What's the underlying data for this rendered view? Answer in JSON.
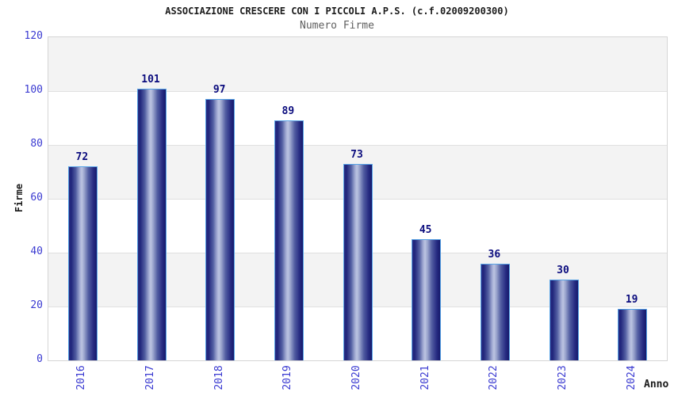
{
  "page": {
    "title": "ASSOCIAZIONE CRESCERE CON I PICCOLI A.P.S. (c.f.02009200300)",
    "subtitle": "Numero Firme"
  },
  "chart_data": {
    "type": "bar",
    "title": "ASSOCIAZIONE CRESCERE CON I PICCOLI A.P.S. (c.f.02009200300)",
    "subtitle": "Numero Firme",
    "categories": [
      "2016",
      "2017",
      "2018",
      "2019",
      "2020",
      "2021",
      "2022",
      "2023",
      "2024"
    ],
    "values": [
      72,
      101,
      97,
      89,
      73,
      45,
      36,
      30,
      19
    ],
    "xlabel": "Anno",
    "ylabel": "Firme",
    "ylim": [
      0,
      120
    ],
    "yticks": [
      0,
      20,
      40,
      60,
      80,
      100,
      120
    ],
    "grid": true,
    "legend": "none",
    "style": {
      "bar_border_color": "#57a3e6",
      "bar_dark_color": "#20257b",
      "bar_light_color": "#bcc4e2",
      "value_label_color": "#0b0c7e",
      "tick_label_color": "#3a3ad1",
      "band_color": "#f3f3f3",
      "band_alt_color": "#ffffff",
      "title_color": "#1c1c1c",
      "subtitle_color": "#5f5f5f",
      "axis_title_color": "#1a1a1a"
    }
  }
}
